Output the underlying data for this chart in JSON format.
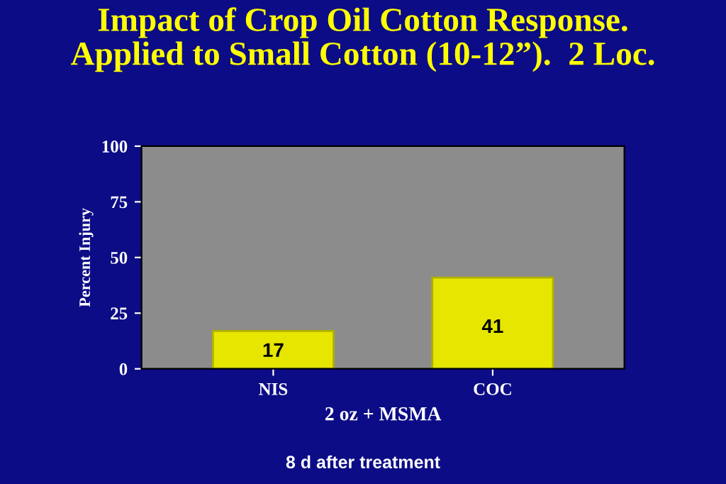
{
  "chart_data": {
    "type": "bar",
    "title": "Impact of Crop Oil Cotton Response.\nApplied to Small Cotton (10-12”).  2 Loc.",
    "categories": [
      "NIS",
      "COC"
    ],
    "values": [
      17,
      41
    ],
    "color": "#e6e600",
    "ylabel": "Percent Injury",
    "xlabel": "2 oz + MSMA",
    "ylim": [
      0,
      100
    ],
    "yticks": [
      0,
      25,
      50,
      75,
      100
    ],
    "data_labels": true,
    "grid": false,
    "annotations": [
      "8 d after treatment"
    ]
  }
}
